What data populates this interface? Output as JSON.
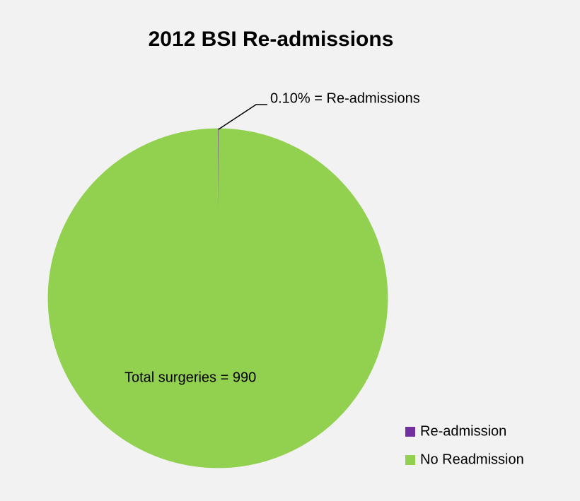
{
  "chart_data": {
    "type": "pie",
    "title": "2012 BSI Re-admissions",
    "categories": [
      "Re-admission",
      "No Readmission"
    ],
    "values": [
      0.1,
      99.9
    ],
    "value_labels": [
      "0.10% = Re-admissions",
      null
    ],
    "colors": [
      "#7030a0",
      "#92d050"
    ],
    "annotations": [
      "Total surgeries = 990"
    ],
    "legend": "bottom-right"
  }
}
